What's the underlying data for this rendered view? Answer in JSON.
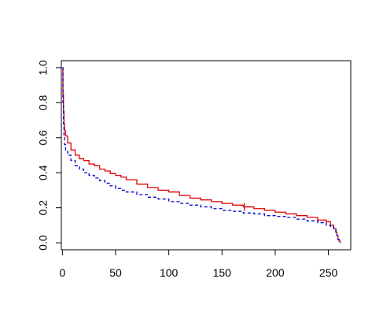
{
  "chart_data": {
    "type": "line",
    "title": "",
    "xlabel": "",
    "ylabel": "",
    "xlim": [
      -1,
      271
    ],
    "ylim": [
      -0.04,
      1.04
    ],
    "xticks": [
      0,
      50,
      100,
      150,
      200,
      250
    ],
    "yticks": [
      0.0,
      0.2,
      0.4,
      0.6,
      0.8,
      1.0
    ],
    "xtick_labels": [
      "0",
      "50",
      "100",
      "150",
      "200",
      "250"
    ],
    "ytick_labels": [
      "0.0",
      "0.2",
      "0.4",
      "0.6",
      "0.8",
      "1.0"
    ],
    "grid": false,
    "series": [
      {
        "color": "#e00000",
        "style": "solid",
        "step": true,
        "x": [
          0,
          0.5,
          1,
          1.5,
          2,
          3,
          5,
          8,
          12,
          16,
          20,
          25,
          30,
          35,
          40,
          45,
          50,
          55,
          60,
          70,
          80,
          90,
          100,
          110,
          120,
          130,
          140,
          150,
          160,
          170,
          180,
          190,
          200,
          210,
          220,
          230,
          240,
          248,
          252,
          255,
          257,
          258,
          259,
          260,
          261
        ],
        "y": [
          1.0,
          0.85,
          0.75,
          0.68,
          0.64,
          0.61,
          0.57,
          0.53,
          0.5,
          0.48,
          0.47,
          0.45,
          0.44,
          0.42,
          0.41,
          0.395,
          0.385,
          0.375,
          0.36,
          0.335,
          0.315,
          0.3,
          0.29,
          0.27,
          0.255,
          0.245,
          0.235,
          0.225,
          0.215,
          0.205,
          0.195,
          0.185,
          0.175,
          0.165,
          0.155,
          0.145,
          0.13,
          0.12,
          0.1,
          0.08,
          0.06,
          0.04,
          0.02,
          0.01,
          0.0
        ]
      },
      {
        "color": "#0000cc",
        "style": "dashed",
        "step": true,
        "x": [
          0,
          0.5,
          1,
          1.5,
          2,
          3,
          5,
          8,
          12,
          16,
          20,
          25,
          30,
          35,
          40,
          45,
          50,
          55,
          60,
          70,
          80,
          90,
          100,
          110,
          120,
          130,
          140,
          150,
          160,
          170,
          180,
          190,
          200,
          210,
          220,
          230,
          240,
          248,
          252,
          255,
          257,
          258,
          259,
          260,
          261
        ],
        "y": [
          1.0,
          0.8,
          0.68,
          0.6,
          0.56,
          0.53,
          0.5,
          0.47,
          0.44,
          0.42,
          0.4,
          0.385,
          0.37,
          0.355,
          0.34,
          0.325,
          0.31,
          0.3,
          0.29,
          0.275,
          0.26,
          0.25,
          0.235,
          0.225,
          0.215,
          0.205,
          0.195,
          0.185,
          0.18,
          0.17,
          0.165,
          0.155,
          0.15,
          0.145,
          0.135,
          0.125,
          0.115,
          0.1,
          0.09,
          0.075,
          0.055,
          0.04,
          0.02,
          0.01,
          0.0
        ]
      }
    ],
    "annotations": [
      {
        "type": "censor-mark",
        "x": 171,
        "y": 0.205,
        "color": "#e00000"
      }
    ]
  }
}
